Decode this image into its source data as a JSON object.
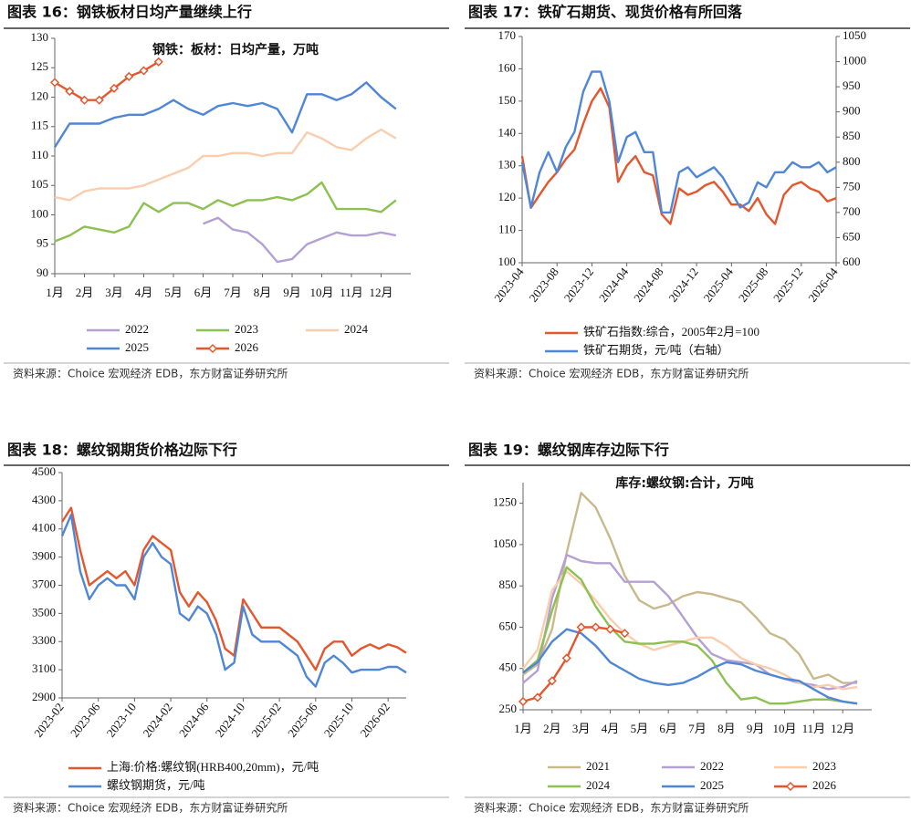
{
  "chart_data": [
    {
      "type": "line",
      "title": "图表 16：钢铁板材日均产量继续上行",
      "subtitle": "钢铁：板材：日均产量，万吨",
      "categories": [
        "1月",
        null,
        "2月",
        null,
        "3月",
        null,
        "4月",
        null,
        "5月",
        null,
        "6月",
        null,
        "7月",
        null,
        "8月",
        null,
        "9月",
        null,
        "10月",
        null,
        "11月",
        null,
        "12月",
        null
      ],
      "series": [
        {
          "name": "2022",
          "color": "#b4a0d2",
          "values": [
            null,
            null,
            null,
            null,
            null,
            null,
            null,
            null,
            null,
            null,
            98.5,
            99.5,
            97.5,
            97,
            95,
            92,
            92.5,
            95,
            96,
            97,
            96.5,
            96.5,
            97,
            96.5
          ]
        },
        {
          "name": "2023",
          "color": "#8cc152",
          "values": [
            95.5,
            96.5,
            98,
            97.5,
            97,
            98,
            102,
            100.5,
            102,
            102,
            101,
            102.5,
            101.5,
            102.5,
            102.5,
            103,
            102.5,
            103.5,
            105.5,
            101,
            101,
            101,
            100.5,
            102.5
          ]
        },
        {
          "name": "2024",
          "color": "#f9cdae",
          "values": [
            103,
            102.5,
            104,
            104.5,
            104.5,
            104.5,
            105,
            106,
            107,
            108,
            110,
            110,
            110.5,
            110.5,
            110,
            110.5,
            110.5,
            114,
            113,
            111.5,
            111,
            113,
            114.5,
            113
          ]
        },
        {
          "name": "2025",
          "color": "#4f86d6",
          "values": [
            111.5,
            115.5,
            115.5,
            115.5,
            116.5,
            117,
            117,
            118,
            119.5,
            118,
            117,
            118.5,
            119,
            118.5,
            119,
            118,
            114,
            120.5,
            120.5,
            119.5,
            120.5,
            122.5,
            120,
            118
          ]
        },
        {
          "name": "2026",
          "color": "#e4572e",
          "marker": "diamond",
          "values": [
            122.5,
            121,
            119.5,
            119.5,
            121.5,
            123.5,
            124.5,
            126,
            null,
            null,
            null,
            null,
            null,
            null,
            null,
            null,
            null,
            null,
            null,
            null,
            null,
            null,
            null,
            null
          ]
        }
      ],
      "ylim": [
        90,
        130
      ],
      "yticks": [
        90,
        95,
        100,
        105,
        110,
        115,
        120,
        125,
        130
      ],
      "source": "资料来源：Choice 宏观经济 EDB，东方财富证券研究所"
    },
    {
      "type": "line",
      "title": "图表 17：铁矿石期货、现货价格有所回落",
      "categories": [
        "2023-04",
        null,
        null,
        null,
        "2023-08",
        null,
        null,
        null,
        "2023-12",
        null,
        null,
        null,
        "2024-04",
        null,
        null,
        null,
        "2024-08",
        null,
        null,
        null,
        "2024-12",
        null,
        null,
        null,
        "2025-04",
        null,
        null,
        null,
        "2025-08",
        null,
        null,
        null,
        "2025-12",
        null,
        null,
        null,
        "2026-04"
      ],
      "series": [
        {
          "name": "铁矿石指数:综合，2005年2月=100",
          "color": "#e4572e",
          "values": [
            133,
            117,
            121,
            125,
            128,
            132,
            135,
            143,
            150,
            154,
            148,
            125,
            130,
            133,
            128,
            127,
            115,
            112,
            123,
            121,
            122,
            124,
            125,
            122,
            118,
            118,
            116,
            120,
            115,
            112,
            121,
            124,
            125,
            123,
            122,
            119,
            120
          ]
        },
        {
          "name": "铁矿石期货，元/吨（右轴）",
          "color": "#4f86d6",
          "axis": "y2",
          "values": [
            800,
            710,
            780,
            820,
            780,
            830,
            860,
            940,
            980,
            980,
            920,
            800,
            850,
            860,
            820,
            820,
            700,
            700,
            780,
            790,
            770,
            780,
            790,
            770,
            740,
            710,
            720,
            760,
            750,
            780,
            780,
            800,
            790,
            790,
            800,
            780,
            790
          ]
        }
      ],
      "ylim": [
        100,
        170
      ],
      "yticks": [
        100,
        110,
        120,
        130,
        140,
        150,
        160,
        170
      ],
      "y2lim": [
        600,
        1050
      ],
      "y2ticks": [
        600,
        650,
        700,
        750,
        800,
        850,
        900,
        950,
        1000,
        1050
      ],
      "source": "资料来源：Choice 宏观经济 EDB，东方财富证券研究所"
    },
    {
      "type": "line",
      "title": "图表 18：螺纹钢期货价格边际下行",
      "categories": [
        "2023-02",
        null,
        null,
        null,
        "2023-06",
        null,
        null,
        null,
        "2023-10",
        null,
        null,
        null,
        "2024-02",
        null,
        null,
        null,
        "2024-06",
        null,
        null,
        null,
        "2024-10",
        null,
        null,
        null,
        "2025-02",
        null,
        null,
        null,
        "2025-06",
        null,
        null,
        null,
        "2025-10",
        null,
        null,
        null,
        "2026-02",
        null,
        null
      ],
      "series": [
        {
          "name": "上海:价格:螺纹钢(HRB400,20mm)，元/吨",
          "color": "#e4572e",
          "values": [
            4150,
            4250,
            3950,
            3700,
            3750,
            3800,
            3750,
            3800,
            3700,
            3950,
            4050,
            4000,
            3950,
            3650,
            3550,
            3650,
            3580,
            3450,
            3250,
            3200,
            3600,
            3500,
            3400,
            3400,
            3400,
            3350,
            3300,
            3200,
            3100,
            3250,
            3300,
            3300,
            3200,
            3250,
            3280,
            3250,
            3280,
            3260,
            3220
          ]
        },
        {
          "name": "螺纹钢期货，元/吨",
          "color": "#4f86d6",
          "values": [
            4050,
            4200,
            3800,
            3600,
            3700,
            3750,
            3700,
            3700,
            3600,
            3900,
            4000,
            3900,
            3850,
            3500,
            3450,
            3550,
            3500,
            3350,
            3100,
            3150,
            3550,
            3350,
            3300,
            3300,
            3300,
            3250,
            3200,
            3050,
            2980,
            3150,
            3200,
            3150,
            3080,
            3100,
            3100,
            3100,
            3120,
            3120,
            3080
          ]
        }
      ],
      "ylim": [
        2900,
        4500
      ],
      "yticks": [
        2900,
        3100,
        3300,
        3500,
        3700,
        3900,
        4100,
        4300,
        4500
      ],
      "source": "资料来源：Choice 宏观经济 EDB，东方财富证券研究所"
    },
    {
      "type": "line",
      "title": "图表 19：螺纹钢库存边际下行",
      "subtitle": "库存:螺纹钢:合计，万吨",
      "categories": [
        "1月",
        null,
        "2月",
        null,
        "3月",
        null,
        "4月",
        null,
        "5月",
        null,
        "6月",
        null,
        "7月",
        null,
        "8月",
        null,
        "9月",
        null,
        "10月",
        null,
        "11月",
        null,
        "12月",
        null
      ],
      "series": [
        {
          "name": "2021",
          "color": "#c8b98c",
          "values": [
            420,
            470,
            640,
            1010,
            1300,
            1230,
            1080,
            900,
            780,
            740,
            760,
            800,
            820,
            810,
            790,
            770,
            700,
            620,
            590,
            520,
            400,
            420,
            380,
            380
          ]
        },
        {
          "name": "2022",
          "color": "#b4a0d2",
          "values": [
            380,
            440,
            790,
            1000,
            970,
            960,
            960,
            870,
            870,
            870,
            800,
            700,
            600,
            520,
            490,
            480,
            470,
            420,
            400,
            380,
            370,
            350,
            360,
            390
          ]
        },
        {
          "name": "2023",
          "color": "#f9cdae",
          "values": [
            450,
            540,
            830,
            920,
            860,
            780,
            690,
            620,
            570,
            540,
            560,
            580,
            600,
            600,
            560,
            500,
            470,
            450,
            420,
            380,
            360,
            370,
            350,
            360
          ]
        },
        {
          "name": "2024",
          "color": "#8cc152",
          "values": [
            430,
            490,
            730,
            940,
            880,
            750,
            650,
            580,
            570,
            570,
            580,
            580,
            560,
            490,
            380,
            300,
            310,
            280,
            280,
            290,
            300,
            300,
            290,
            280
          ]
        },
        {
          "name": "2025",
          "color": "#4f86d6",
          "values": [
            430,
            480,
            580,
            640,
            620,
            560,
            480,
            440,
            400,
            380,
            370,
            380,
            410,
            450,
            480,
            470,
            440,
            420,
            400,
            390,
            350,
            310,
            290,
            280
          ]
        },
        {
          "name": "2026",
          "color": "#e4572e",
          "marker": "diamond",
          "values": [
            290,
            310,
            390,
            500,
            650,
            650,
            640,
            620,
            null,
            null,
            null,
            null,
            null,
            null,
            null,
            null,
            null,
            null,
            null,
            null,
            null,
            null,
            null,
            null
          ]
        }
      ],
      "ylim": [
        250,
        1350
      ],
      "yticks": [
        250,
        450,
        650,
        850,
        1050,
        1250
      ],
      "source": "资料来源：Choice 宏观经济 EDB，东方财富证券研究所"
    }
  ]
}
